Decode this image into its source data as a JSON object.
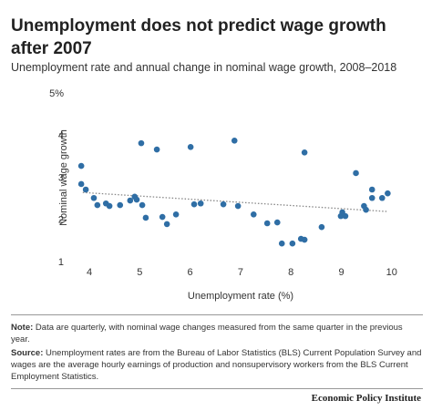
{
  "chart_data": {
    "type": "scatter",
    "title": "Unemployment does not predict wage growth after 2007",
    "subtitle": "Unemployment rate and annual change in nominal wage growth, 2008–2018",
    "x_label": "Unemployment rate (%)",
    "y_label": "Nominal wage growth",
    "color": "#2f6ea5",
    "x": [
      3.84,
      3.84,
      3.93,
      4.09,
      4.16,
      4.33,
      4.4,
      4.61,
      4.81,
      4.9,
      4.94,
      5.05,
      5.03,
      5.12,
      5.34,
      5.45,
      5.54,
      5.72,
      6.01,
      6.08,
      6.21,
      6.66,
      6.88,
      6.95,
      7.26,
      7.53,
      7.73,
      7.82,
      8.03,
      8.2,
      8.27,
      8.27,
      8.61,
      8.99,
      9.02,
      9.08,
      9.29,
      9.45,
      9.49,
      9.61,
      9.61,
      9.81,
      9.92
    ],
    "values": [
      3.29,
      2.86,
      2.73,
      2.53,
      2.36,
      2.4,
      2.34,
      2.36,
      2.47,
      2.56,
      2.49,
      2.36,
      3.83,
      2.06,
      3.68,
      2.08,
      1.91,
      2.14,
      3.74,
      2.38,
      2.4,
      2.38,
      3.89,
      2.34,
      2.14,
      1.93,
      1.95,
      1.45,
      1.45,
      1.56,
      1.54,
      3.61,
      1.84,
      2.1,
      2.19,
      2.1,
      3.12,
      2.34,
      2.25,
      2.73,
      2.53,
      2.53,
      2.64
    ],
    "trendline": {
      "x": [
        3.87,
        9.9
      ],
      "values": [
        2.66,
        2.21
      ],
      "color": "#888888"
    },
    "xlim": [
      3.6,
      10.2
    ],
    "ylim": [
      1,
      5
    ],
    "xticks": [
      4,
      5,
      6,
      7,
      8,
      9,
      10
    ],
    "yticks": [
      1,
      2,
      3,
      4,
      {
        "value": 5,
        "label": "5%"
      }
    ],
    "grid": false,
    "note_label": "Note:",
    "note": "Data are quarterly, with nominal wage changes measured from the same quarter in the previous year.",
    "source_label": "Source:",
    "source": "Unemployment rates are from the Bureau of Labor Statistics (BLS) Current Population Survey and wages are the average hourly earnings of production and nonsupervisory workers from the BLS Current Employment Statistics.",
    "credit": "Economic Policy Institute"
  }
}
